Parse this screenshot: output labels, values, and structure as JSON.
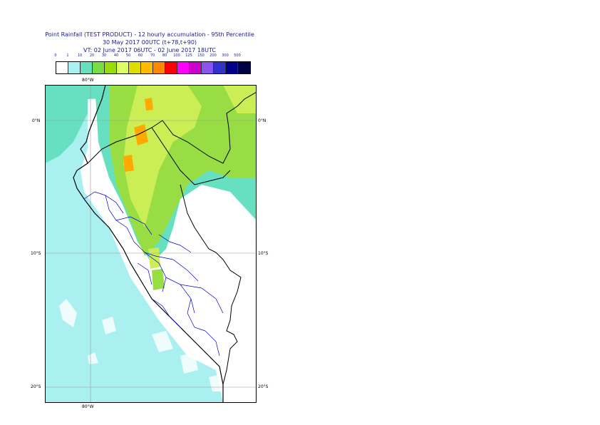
{
  "header": {
    "title_line1": "Point Rainfall (TEST PRODUCT) - 12 hourly accumulation - 95th Percentile",
    "title_line2": "30 May 2017 00UTC (t+78,t+90)",
    "title_line3": "VT: 02 June 2017 06UTC - 02 June 2017 18UTC"
  },
  "legend": {
    "ticks": [
      "0",
      "1",
      "10",
      "20",
      "30",
      "40",
      "50",
      "60",
      "70",
      "80",
      "100",
      "125",
      "150",
      "200",
      "300",
      "500"
    ],
    "colors": [
      "#ffffff",
      "#aaf0f0",
      "#66e0c0",
      "#77dd44",
      "#99dd00",
      "#ddff66",
      "#dddd00",
      "#ffbb00",
      "#ff8800",
      "#ff0000",
      "#ff00ff",
      "#cc00cc",
      "#8855ee",
      "#3333cc",
      "#000088",
      "#000044"
    ]
  },
  "map": {
    "lon_label_top": "80°W",
    "lon_label_bottom": "80°W",
    "lat_labels": [
      "0°N",
      "10°S",
      "20°S"
    ],
    "colors": {
      "ocean": "#aaf0f0",
      "light_rain": "#66e0c0",
      "moderate_rain": "#99dd44",
      "heavy_rain": "#ddee66",
      "very_heavy": "#ffaa00",
      "coast": "#000000",
      "admin_boundary": "#0000cc",
      "grid": "#999999"
    }
  }
}
